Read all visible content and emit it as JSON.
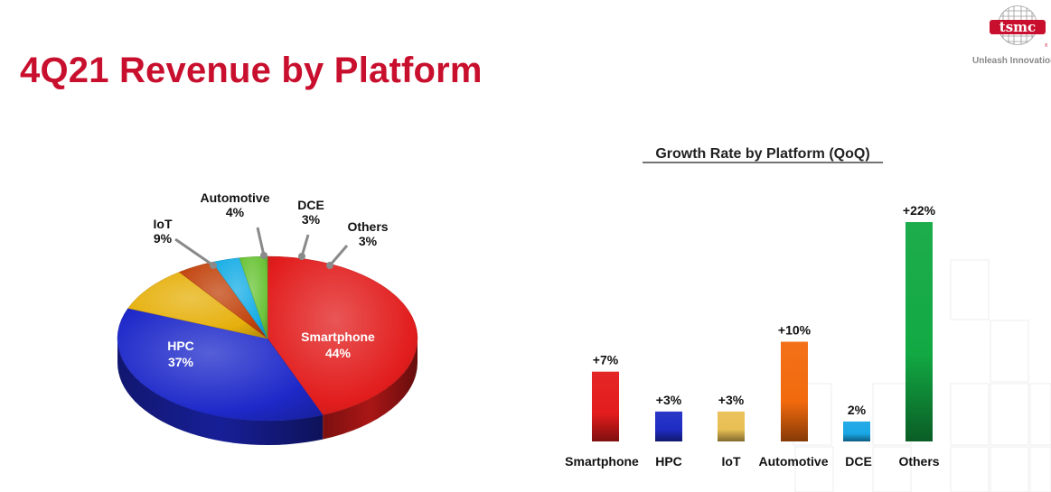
{
  "page": {
    "title": "4Q21 Revenue by Platform",
    "logo_text": "tsmc",
    "tagline": "Unleash Innovation"
  },
  "chart_data": [
    {
      "type": "pie",
      "categories": [
        "Smartphone",
        "HPC",
        "IoT",
        "Automotive",
        "DCE",
        "Others"
      ],
      "values": [
        44,
        37,
        9,
        4,
        3,
        3
      ],
      "labels": [
        "44%",
        "37%",
        "9%",
        "4%",
        "3%",
        "3%"
      ],
      "colors": [
        "#e21d1d",
        "#1e29c9",
        "#e6b00c",
        "#c2440e",
        "#18aee6",
        "#6cc43a"
      ],
      "style": "3d",
      "title": ""
    },
    {
      "type": "bar",
      "title": "Growth Rate by Platform (QoQ)",
      "categories": [
        "Smartphone",
        "HPC",
        "IoT",
        "Automotive",
        "DCE",
        "Others"
      ],
      "values": [
        7,
        3,
        3,
        10,
        2,
        22
      ],
      "labels": [
        "+7%",
        "+3%",
        "+3%",
        "+10%",
        "2%",
        "+22%"
      ],
      "colors": [
        "#e31c1c",
        "#1f2cc4",
        "#e9bf54",
        "#f26a0d",
        "#1aa7e6",
        "#12a943"
      ],
      "xlabel": "",
      "ylabel": "",
      "ylim": [
        0,
        22
      ],
      "grid": false,
      "legend": "none"
    }
  ]
}
